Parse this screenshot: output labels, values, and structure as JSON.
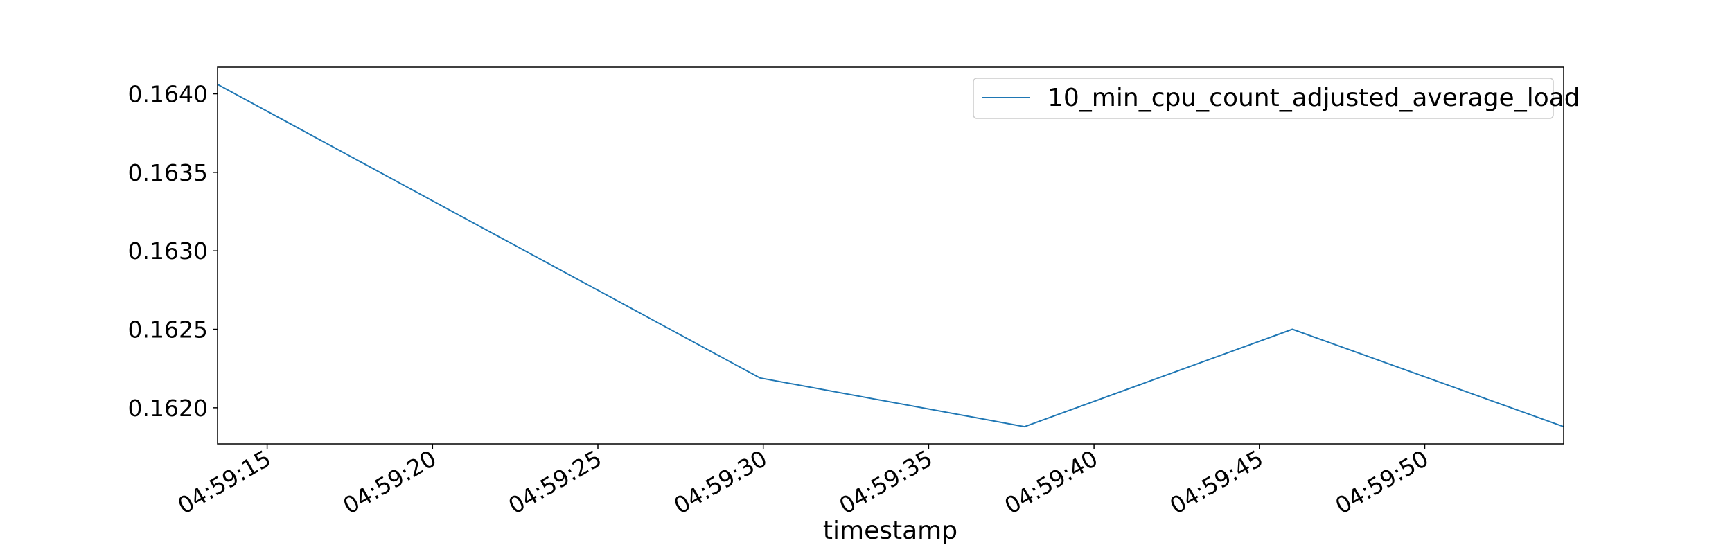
{
  "chart_data": {
    "type": "line",
    "title": "",
    "xlabel": "timestamp",
    "ylabel": "",
    "x_tick_labels": [
      "04:59:15",
      "04:59:20",
      "04:59:25",
      "04:59:30",
      "04:59:35",
      "04:59:40",
      "04:59:45",
      "04:59:50"
    ],
    "y_tick_labels": [
      "0.1620",
      "0.1625",
      "0.1630",
      "0.1635",
      "0.1640"
    ],
    "xlim": [
      "04:59:13.5",
      "04:59:54.2"
    ],
    "ylim": [
      0.16177,
      0.16417
    ],
    "grid": false,
    "legend_position": "upper right",
    "series": [
      {
        "name": "10_min_cpu_count_adjusted_average_load",
        "color": "#1f77b4",
        "x": [
          "04:59:13.5",
          "04:59:29.9",
          "04:59:37.9",
          "04:59:46.0",
          "04:59:54.2"
        ],
        "y": [
          0.16406,
          0.16219,
          0.16188,
          0.1625,
          0.16188
        ]
      }
    ]
  }
}
